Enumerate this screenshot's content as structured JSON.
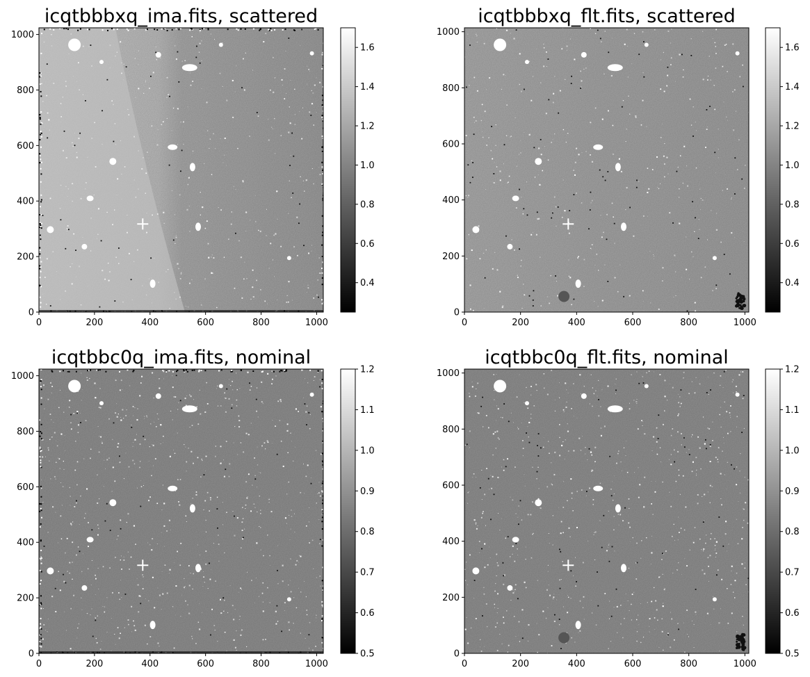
{
  "panels": [
    {
      "title": "icqtbbbxq_ima.fits, scattered",
      "x_ticks": [
        "0",
        "200",
        "400",
        "600",
        "800",
        "1000"
      ],
      "y_ticks": [
        "0",
        "200",
        "400",
        "600",
        "800",
        "1000"
      ],
      "colorbar_ticks": [
        "0.4",
        "0.6",
        "0.8",
        "1.0",
        "1.2",
        "1.4",
        "1.6"
      ],
      "colorbar_range": [
        0.25,
        1.7
      ],
      "x_range": [
        0,
        1024
      ],
      "y_range": [
        0,
        1024
      ],
      "colormap": "gray"
    },
    {
      "title": "icqtbbbxq_flt.fits, scattered",
      "x_ticks": [
        "0",
        "200",
        "400",
        "600",
        "800",
        "1000"
      ],
      "y_ticks": [
        "0",
        "200",
        "400",
        "600",
        "800",
        "1000"
      ],
      "colorbar_ticks": [
        "0.4",
        "0.6",
        "0.8",
        "1.0",
        "1.2",
        "1.4",
        "1.6"
      ],
      "colorbar_range": [
        0.25,
        1.7
      ],
      "x_range": [
        0,
        1014
      ],
      "y_range": [
        0,
        1014
      ],
      "colormap": "gray"
    },
    {
      "title": "icqtbbc0q_ima.fits, nominal",
      "x_ticks": [
        "0",
        "200",
        "400",
        "600",
        "800",
        "1000"
      ],
      "y_ticks": [
        "0",
        "200",
        "400",
        "600",
        "800",
        "1000"
      ],
      "colorbar_ticks": [
        "0.5",
        "0.6",
        "0.7",
        "0.8",
        "0.9",
        "1.0",
        "1.1",
        "1.2"
      ],
      "colorbar_range": [
        0.5,
        1.2
      ],
      "x_range": [
        0,
        1024
      ],
      "y_range": [
        0,
        1024
      ],
      "colormap": "gray"
    },
    {
      "title": "icqtbbc0q_flt.fits, nominal",
      "x_ticks": [
        "0",
        "200",
        "400",
        "600",
        "800",
        "1000"
      ],
      "y_ticks": [
        "0",
        "200",
        "400",
        "600",
        "800",
        "1000"
      ],
      "colorbar_ticks": [
        "0.5",
        "0.6",
        "0.7",
        "0.8",
        "0.9",
        "1.0",
        "1.1",
        "1.2"
      ],
      "colorbar_range": [
        0.5,
        1.2
      ],
      "x_range": [
        0,
        1014
      ],
      "y_range": [
        0,
        1014
      ],
      "colormap": "gray"
    }
  ]
}
